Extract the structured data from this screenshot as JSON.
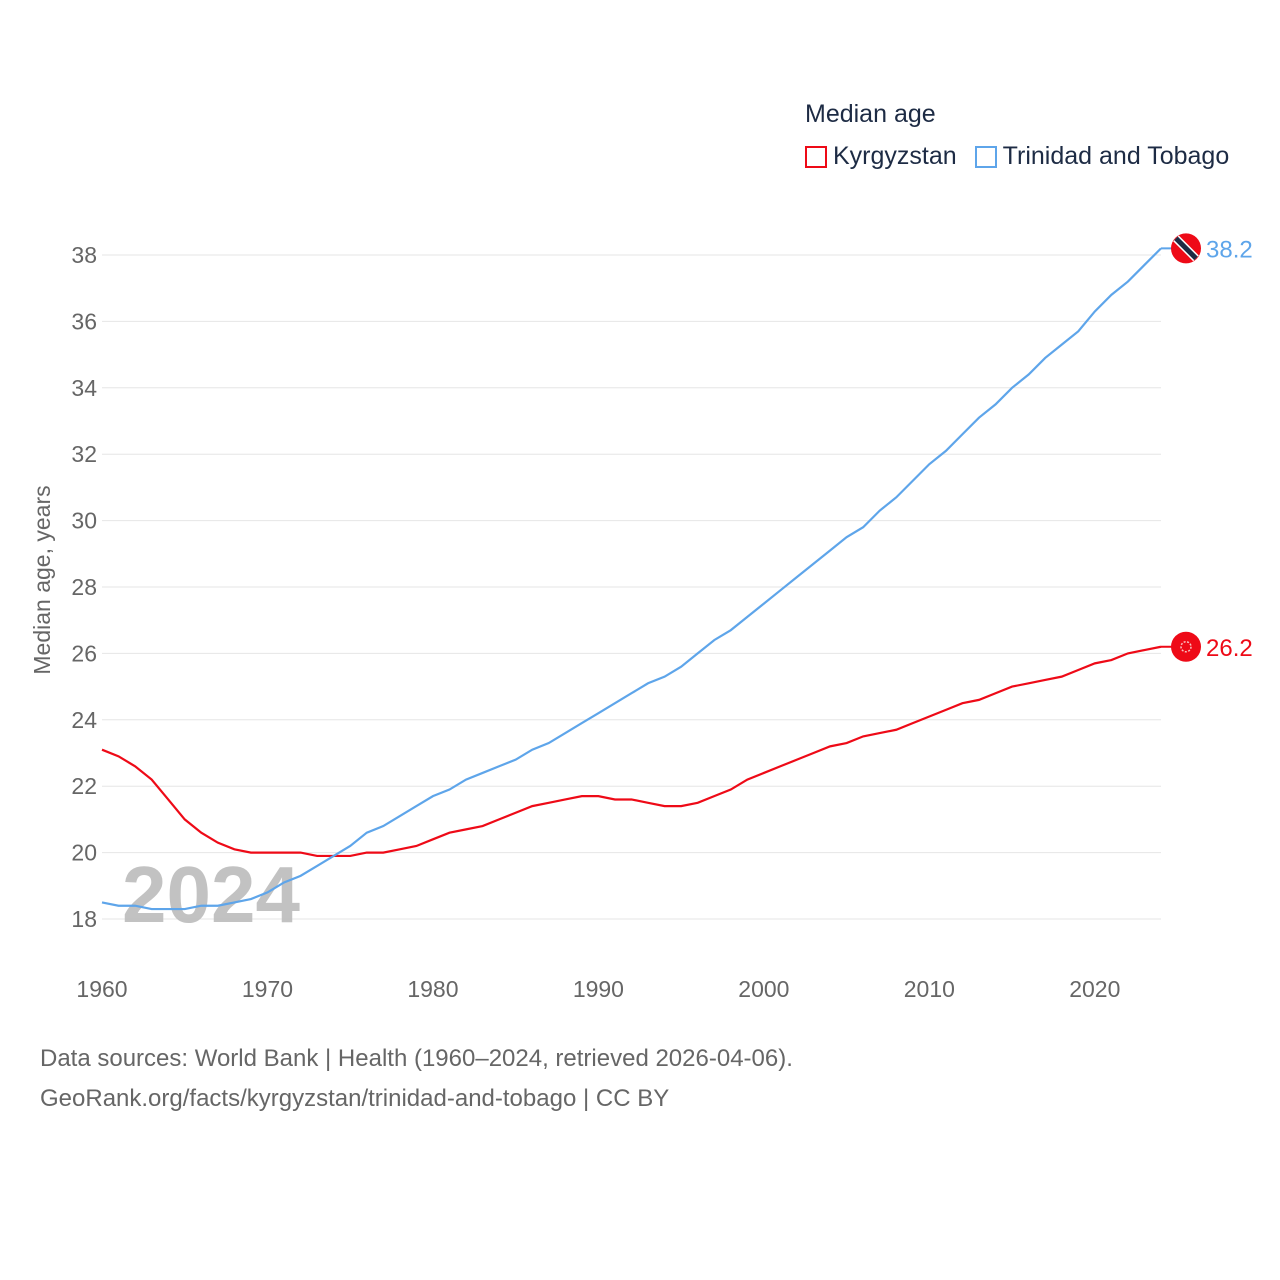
{
  "chart_data": {
    "type": "line",
    "title": "Median age",
    "xlabel": "",
    "ylabel": "Median age, years",
    "xlim": [
      1960,
      2024
    ],
    "ylim": [
      18,
      38
    ],
    "yticks": [
      18,
      20,
      22,
      24,
      26,
      28,
      30,
      32,
      34,
      36,
      38
    ],
    "xticks": [
      1960,
      1970,
      1980,
      1990,
      2000,
      2010,
      2020
    ],
    "grid": true,
    "legend_position": "top-right",
    "watermark_year": "2024",
    "x": [
      1960,
      1961,
      1962,
      1963,
      1964,
      1965,
      1966,
      1967,
      1968,
      1969,
      1970,
      1971,
      1972,
      1973,
      1974,
      1975,
      1976,
      1977,
      1978,
      1979,
      1980,
      1981,
      1982,
      1983,
      1984,
      1985,
      1986,
      1987,
      1988,
      1989,
      1990,
      1991,
      1992,
      1993,
      1994,
      1995,
      1996,
      1997,
      1998,
      1999,
      2000,
      2001,
      2002,
      2003,
      2004,
      2005,
      2006,
      2007,
      2008,
      2009,
      2010,
      2011,
      2012,
      2013,
      2014,
      2015,
      2016,
      2017,
      2018,
      2019,
      2020,
      2021,
      2022,
      2023,
      2024
    ],
    "series": [
      {
        "name": "Kyrgyzstan",
        "color": "#ee0a17",
        "end_label": "26.2",
        "values": [
          23.1,
          22.9,
          22.6,
          22.2,
          21.6,
          21.0,
          20.6,
          20.3,
          20.1,
          20.0,
          20.0,
          20.0,
          20.0,
          19.9,
          19.9,
          19.9,
          20.0,
          20.0,
          20.1,
          20.2,
          20.4,
          20.6,
          20.7,
          20.8,
          21.0,
          21.2,
          21.4,
          21.5,
          21.6,
          21.7,
          21.7,
          21.6,
          21.6,
          21.5,
          21.4,
          21.4,
          21.5,
          21.7,
          21.9,
          22.2,
          22.4,
          22.6,
          22.8,
          23.0,
          23.2,
          23.3,
          23.5,
          23.6,
          23.7,
          23.9,
          24.1,
          24.3,
          24.5,
          24.6,
          24.8,
          25.0,
          25.1,
          25.2,
          25.3,
          25.5,
          25.7,
          25.8,
          26.0,
          26.1,
          26.2
        ]
      },
      {
        "name": "Trinidad and Tobago",
        "color": "#5ea5ea",
        "end_label": "38.2",
        "values": [
          18.5,
          18.4,
          18.4,
          18.3,
          18.3,
          18.3,
          18.4,
          18.4,
          18.5,
          18.6,
          18.8,
          19.1,
          19.3,
          19.6,
          19.9,
          20.2,
          20.6,
          20.8,
          21.1,
          21.4,
          21.7,
          21.9,
          22.2,
          22.4,
          22.6,
          22.8,
          23.1,
          23.3,
          23.6,
          23.9,
          24.2,
          24.5,
          24.8,
          25.1,
          25.3,
          25.6,
          26.0,
          26.4,
          26.7,
          27.1,
          27.5,
          27.9,
          28.3,
          28.7,
          29.1,
          29.5,
          29.8,
          30.3,
          30.7,
          31.2,
          31.7,
          32.1,
          32.6,
          33.1,
          33.5,
          34.0,
          34.4,
          34.9,
          35.3,
          35.7,
          36.3,
          36.8,
          37.2,
          37.7,
          38.2
        ]
      }
    ]
  },
  "footer": {
    "line1": "Data sources: World Bank | Health (1960–2024, retrieved 2026-04-06).",
    "line2": "GeoRank.org/facts/kyrgyzstan/trinidad-and-tobago | CC BY"
  }
}
